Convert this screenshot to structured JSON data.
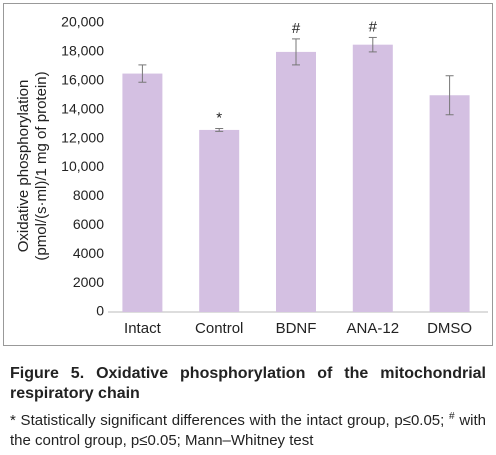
{
  "chart_data": {
    "type": "bar",
    "y_label": [
      "Oxidative phosphorylation",
      "(pmol/(s·ml)/1 mg of protein)"
    ],
    "categories": [
      "Intact",
      "Control",
      "BDNF",
      "ANA-12",
      "DMSO"
    ],
    "values": [
      16500,
      12600,
      18000,
      18500,
      15000
    ],
    "errors": [
      600,
      100,
      900,
      500,
      1350
    ],
    "annotations": [
      null,
      "*",
      "#",
      "#",
      null
    ],
    "color": "#d4c0e2",
    "ylim": [
      0,
      20000
    ],
    "yticks": [
      0,
      2000,
      4000,
      6000,
      8000,
      {
        "value": 10000,
        "label": "10,000"
      },
      {
        "value": 12000,
        "label": "12,000"
      },
      {
        "value": 14000,
        "label": "14,000"
      },
      {
        "value": 16000,
        "label": "16,000"
      },
      {
        "value": 18000,
        "label": "18,000"
      },
      {
        "value": 20000,
        "label": "20,000"
      }
    ],
    "grid": false
  },
  "caption": {
    "title": "Figure 5. Oxidative phosphorylation of the mitochondrial respiratory chain",
    "note": [
      "* Statistically significant differences with the intact group, p≤0.05; ",
      "#",
      " with the control group, p≤0.05; Mann–Whitney test"
    ]
  }
}
